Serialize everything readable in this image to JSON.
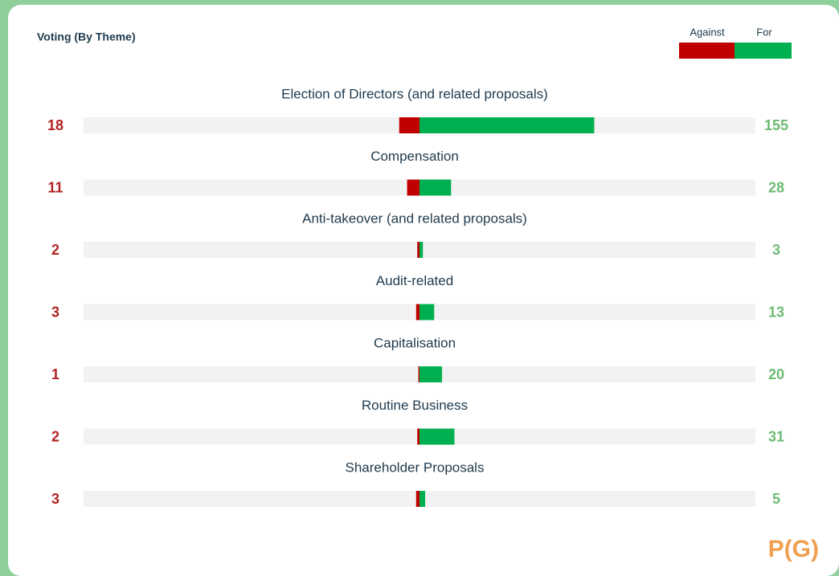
{
  "chart_data": {
    "type": "diverging_bar",
    "title": "Voting (By Theme)",
    "categories": [
      "Election of Directors (and related proposals)",
      "Compensation",
      "Anti-takeover (and related proposals)",
      "Audit-related",
      "Capitalisation",
      "Routine Business",
      "Shareholder Proposals"
    ],
    "series": [
      {
        "name": "Against",
        "color": "#c00000",
        "values": [
          18,
          11,
          2,
          3,
          1,
          2,
          3
        ]
      },
      {
        "name": "For",
        "color": "#00b050",
        "values": [
          155,
          28,
          3,
          13,
          20,
          31,
          5
        ]
      }
    ],
    "xlim": [
      -298,
      298
    ],
    "logo": "P(G)"
  }
}
